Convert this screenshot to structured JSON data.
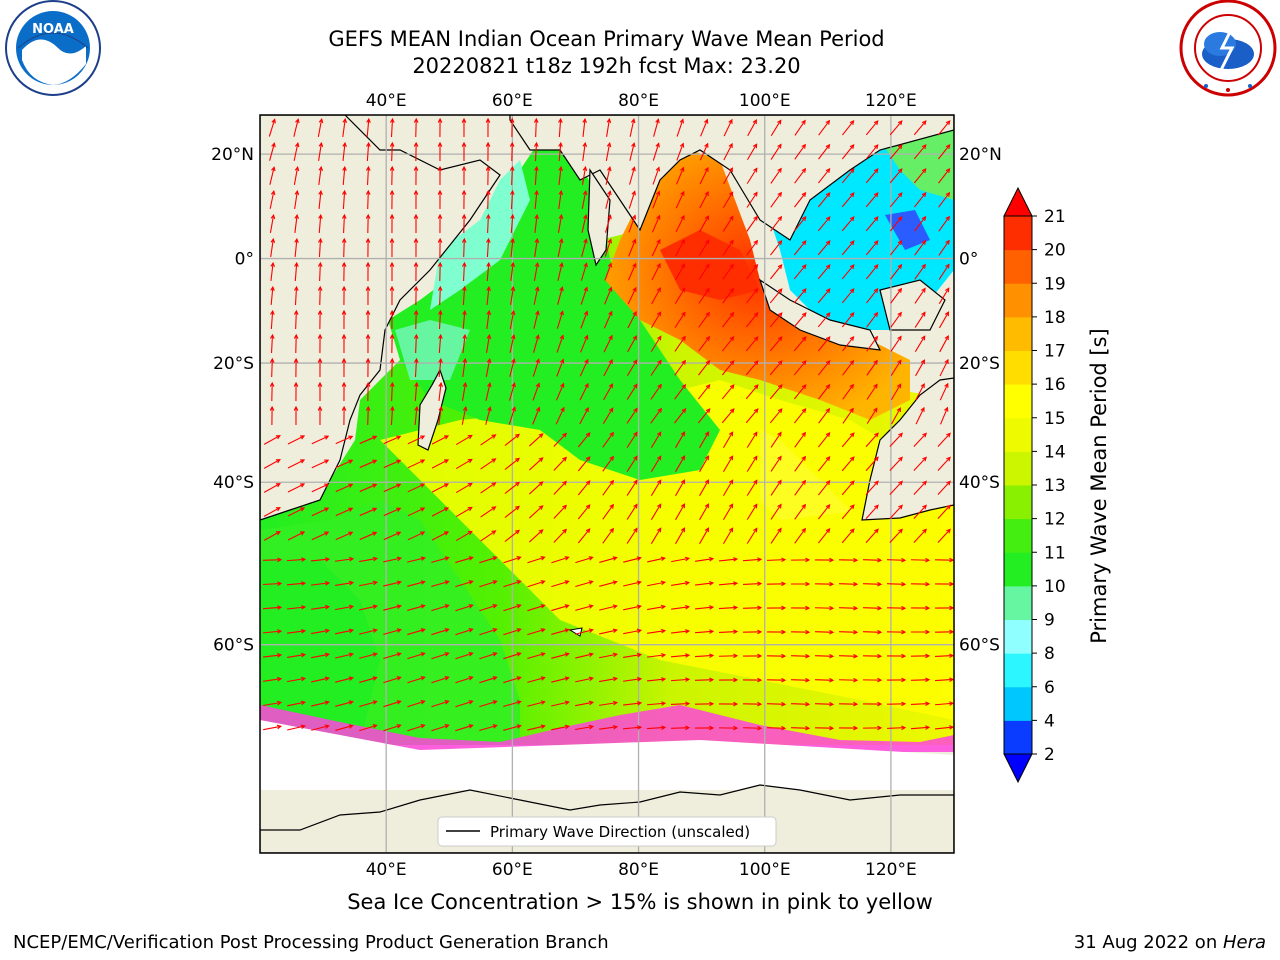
{
  "header": {
    "title_line1": "GEFS MEAN Indian Ocean Primary Wave Mean Period",
    "title_line2": "20220821 t18z 192h fcst   Max: 23.20",
    "left_logo": "noaa-logo",
    "right_logo": "national-weather-service-logo"
  },
  "map": {
    "lon_ticks": [
      "40°E",
      "60°E",
      "80°E",
      "100°E",
      "120°E"
    ],
    "lat_ticks": [
      "20°N",
      "0°",
      "20°S",
      "40°S",
      "60°S"
    ],
    "legend_label": "Primary Wave Direction (unscaled)",
    "colors": {
      "land": "#efeedc",
      "ice_free_frame": "#ffffff",
      "arrow": "#ff0000",
      "grid": "#b0b0b0",
      "sea_ice_pink": "#ff44dd"
    }
  },
  "colorbar": {
    "label": "Primary Wave Mean Period [s]",
    "ticks": [
      "2",
      "4",
      "6",
      "8",
      "9",
      "10",
      "11",
      "12",
      "13",
      "14",
      "15",
      "16",
      "17",
      "18",
      "19",
      "20",
      "21"
    ],
    "colors": [
      "#0a3cff",
      "#00c8ff",
      "#2cf6ff",
      "#90ffff",
      "#66f5a0",
      "#22ee22",
      "#44ee11",
      "#88f000",
      "#ccf500",
      "#eefa00",
      "#ffff00",
      "#ffdd00",
      "#ffbb00",
      "#ff9000",
      "#ff6000",
      "#ff2e00"
    ],
    "under_color": "#0000ff",
    "over_color": "#ff0000"
  },
  "chart_data": {
    "type": "heatmap",
    "title": "GEFS MEAN Indian Ocean Primary Wave Mean Period",
    "subtitle": "20220821 t18z 192h fcst   Max: 23.20",
    "variable": "Primary Wave Mean Period [s]",
    "max": 23.2,
    "xlim": [
      20,
      130
    ],
    "ylim": [
      -75,
      27
    ],
    "colorbar_ticks": [
      2,
      4,
      6,
      8,
      9,
      10,
      11,
      12,
      13,
      14,
      15,
      16,
      17,
      18,
      19,
      20,
      21
    ],
    "grid": true,
    "legend": "Primary Wave Direction (unscaled)",
    "legend_placement": "bottom-center"
  },
  "notes": {
    "sea_ice": "Sea Ice Concentration > 15% is shown in pink to yellow"
  },
  "footer": {
    "left": "NCEP/EMC/Verification Post Processing Product Generation Branch",
    "right_date": "31 Aug 2022 on ",
    "right_host": "Hera"
  }
}
